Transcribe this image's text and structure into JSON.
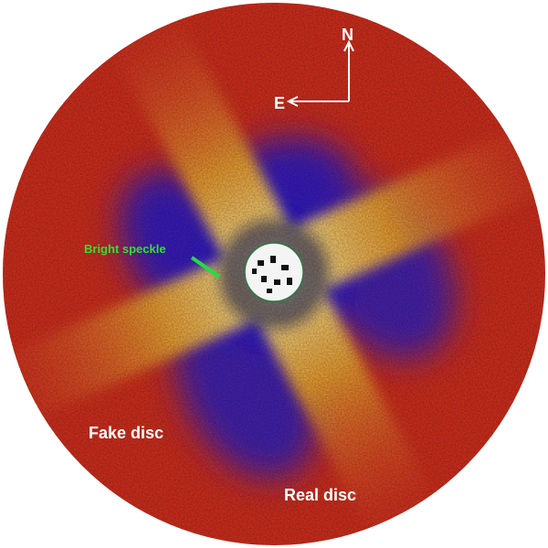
{
  "compass": {
    "north": "N",
    "east": "E"
  },
  "annotations": {
    "speckle": "Bright speckle",
    "fake_disc": "Fake disc",
    "real_disc": "Real disc"
  }
}
